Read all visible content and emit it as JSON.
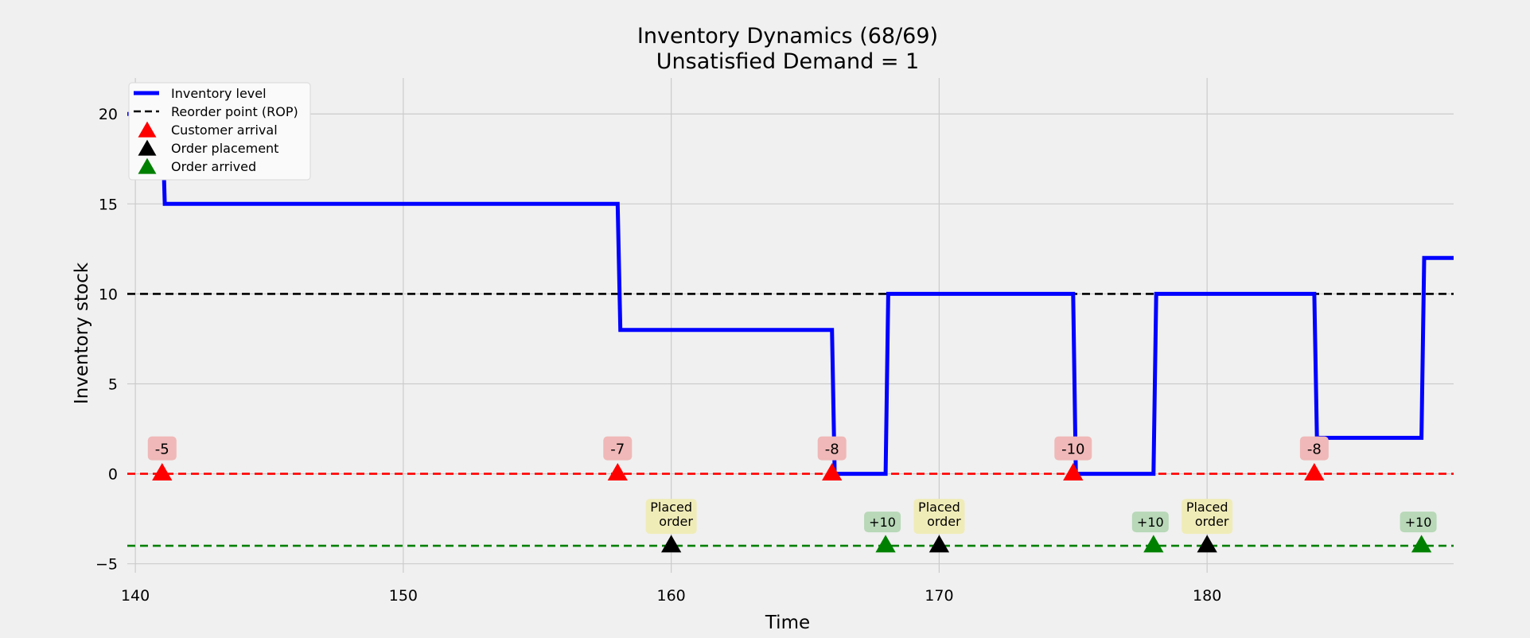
{
  "chart_data": {
    "type": "line",
    "title": "Inventory Dynamics (68/69)",
    "subtitle": "Unsatisfied Demand = 1",
    "xlabel": "Time",
    "ylabel": "Inventory stock",
    "xlim": [
      139.7,
      189.2
    ],
    "ylim": [
      -5.5,
      22
    ],
    "x_ticks": [
      140,
      150,
      160,
      170,
      180
    ],
    "y_ticks": [
      -5,
      0,
      5,
      10,
      15,
      20
    ],
    "grid": true,
    "legend_position": "top-left",
    "legend": [
      {
        "label": "Inventory level",
        "kind": "solid-line",
        "color": "#0000ff"
      },
      {
        "label": "Reorder point (ROP)",
        "kind": "dashed-line",
        "color": "#000000"
      },
      {
        "label": "Customer arrival",
        "kind": "triangle",
        "color": "#ff0000"
      },
      {
        "label": "Order placement",
        "kind": "triangle",
        "color": "#000000"
      },
      {
        "label": "Order arrived",
        "kind": "triangle",
        "color": "#008000"
      }
    ],
    "inventory_level": {
      "color": "#0000ff",
      "x": [
        139.7,
        141.0,
        141.1,
        158.0,
        158.1,
        166.0,
        166.1,
        168.0,
        168.1,
        175.0,
        175.1,
        178.0,
        178.1,
        184.0,
        184.1,
        188.0,
        188.1,
        189.2
      ],
      "y": [
        20,
        20,
        15,
        15,
        8,
        8,
        0,
        0,
        10,
        10,
        0,
        0,
        10,
        10,
        2,
        2,
        12,
        12
      ]
    },
    "reorder_point": {
      "value": 10,
      "color": "#000000"
    },
    "customer_baseline": {
      "value": 0,
      "color": "#ff0000"
    },
    "order_baseline": {
      "value": -4,
      "color": "#008000"
    },
    "customer_arrivals": {
      "color": "#ff0000",
      "label_bg": "#f0b8b8",
      "points": [
        {
          "x": 141,
          "y": 0,
          "label": "-5"
        },
        {
          "x": 158,
          "y": 0,
          "label": "-7"
        },
        {
          "x": 166,
          "y": 0,
          "label": "-8"
        },
        {
          "x": 175,
          "y": 0,
          "label": "-10"
        },
        {
          "x": 184,
          "y": 0,
          "label": "-8"
        }
      ]
    },
    "order_placements": {
      "color": "#000000",
      "label_bg": "#f0ecb8",
      "points": [
        {
          "x": 160,
          "y": -4,
          "label_line1": "Placed",
          "label_line2": "order"
        },
        {
          "x": 170,
          "y": -4,
          "label_line1": "Placed",
          "label_line2": "order"
        },
        {
          "x": 180,
          "y": -4,
          "label_line1": "Placed",
          "label_line2": "order"
        }
      ]
    },
    "order_arrivals": {
      "color": "#008000",
      "label_bg": "#b8d8b8",
      "points": [
        {
          "x": 168,
          "y": -4,
          "label": "+10"
        },
        {
          "x": 178,
          "y": -4,
          "label": "+10"
        },
        {
          "x": 188,
          "y": -4,
          "label": "+10"
        }
      ]
    }
  }
}
